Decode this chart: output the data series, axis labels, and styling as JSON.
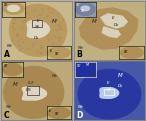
{
  "bg_color": "#b0b0b0",
  "panel_bg_A": "#c8b88a",
  "panel_bg_B": "#c0b080",
  "panel_bg_C": "#bca878",
  "panel_bg_D": "#4858a8",
  "tissue_A": "#b89a60",
  "tissue_B": "#b09058",
  "tissue_C": "#a88850",
  "tissue_D": "#3040a0",
  "lumen_A": "#ddd5c0",
  "lumen_B": "#d8d0b8",
  "lumen_D": "#b8c8e8",
  "inset_bg_A": "#c8b880",
  "inset_bg_B": "#b0b8c0",
  "inset_bg_C": "#c0b070",
  "inset_bg_D": "#283080",
  "label_fs": 4.0,
  "panel_fs": 5.5,
  "wspace": 0.025,
  "hspace": 0.025
}
